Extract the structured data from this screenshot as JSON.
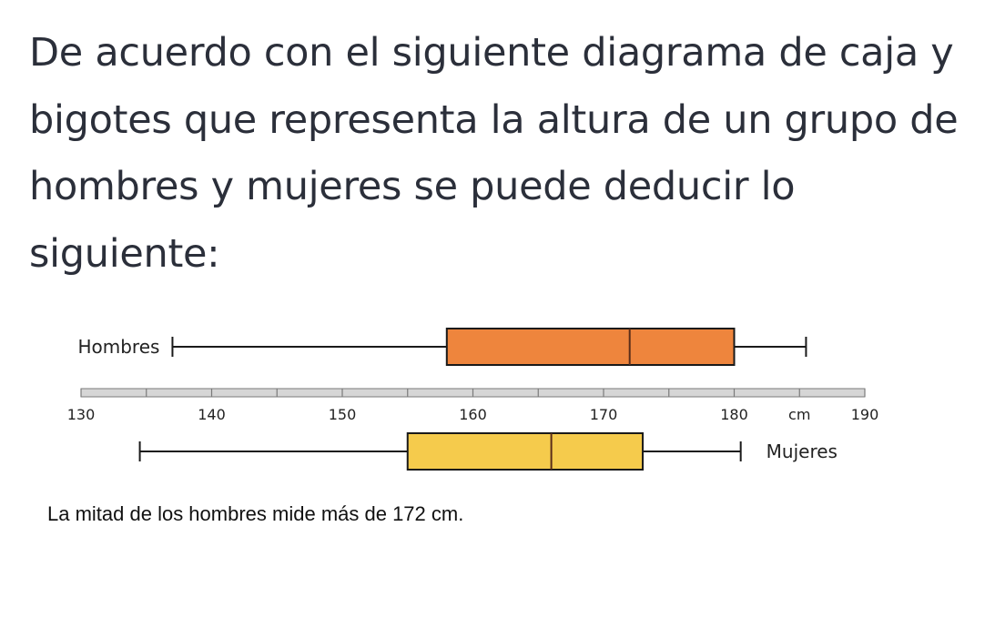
{
  "question": "De acuerdo con el siguiente diagrama de caja y bigotes que representa la altura de un grupo de hombres y mujeres se puede deducir lo siguiente:",
  "answer": "La mitad de los hombres mide más de 172 cm.",
  "chart_data": {
    "type": "boxplot",
    "orientation": "horizontal",
    "axis": {
      "min": 130,
      "max": 190,
      "minor_step": 5,
      "ticks": [
        130,
        140,
        150,
        160,
        170,
        180,
        190
      ],
      "tick_labels": [
        "130",
        "140",
        "150",
        "160",
        "170",
        "180",
        "190"
      ],
      "unit_label": "cm",
      "unit_position": 185
    },
    "series": [
      {
        "name": "Hombres",
        "label_side": "left",
        "min": 137,
        "q1": 158,
        "median": 172,
        "q3": 180,
        "max": 185.5,
        "color": "#ee853d"
      },
      {
        "name": "Mujeres",
        "label_side": "right",
        "min": 134.5,
        "q1": 155,
        "median": 166,
        "q3": 173,
        "max": 180.5,
        "color": "#f5cb4c"
      }
    ]
  }
}
